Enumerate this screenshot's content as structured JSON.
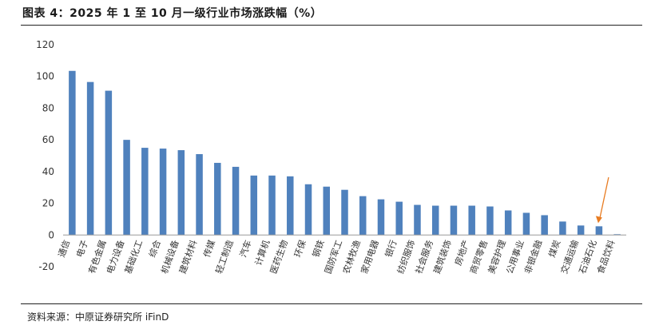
{
  "title": "图表 4：2025 年 1 至 10 月一级行业市场涨跌幅（%）",
  "source": "资料来源：中原证券研究所  iFinD",
  "chart_data": {
    "type": "bar",
    "title": "图表 4：2025 年 1 至 10 月一级行业市场涨跌幅（%）",
    "xlabel": "",
    "ylabel": "",
    "ylim": [
      -20,
      120
    ],
    "yticks": [
      -20,
      0,
      20,
      40,
      60,
      80,
      100,
      120
    ],
    "grid": false,
    "legend": "none",
    "bar_color": "#4f81bd",
    "annotation": {
      "type": "arrow",
      "target": "石油石化",
      "color": "#e87c22"
    },
    "categories": [
      "通信",
      "电子",
      "有色金属",
      "电力设备",
      "基础化工",
      "综合",
      "机械设备",
      "建筑材料",
      "传媒",
      "轻工制造",
      "汽车",
      "计算机",
      "医药生物",
      "环保",
      "钢铁",
      "国防军工",
      "农林牧渔",
      "家用电器",
      "银行",
      "纺织服饰",
      "社会服务",
      "建筑装饰",
      "房地产",
      "商贸零售",
      "美容护理",
      "公用事业",
      "非银金融",
      "煤炭",
      "交通运输",
      "石油石化",
      "食品饮料"
    ],
    "values": [
      103.5,
      96.5,
      91,
      60,
      55,
      54.5,
      53.5,
      51,
      45.5,
      43,
      37.5,
      37.5,
      37,
      32,
      30.5,
      28.5,
      24.5,
      22.5,
      21,
      19,
      18.5,
      18.5,
      18.5,
      18,
      15.5,
      14,
      12.5,
      8.5,
      6,
      5.5,
      0.5
    ]
  }
}
